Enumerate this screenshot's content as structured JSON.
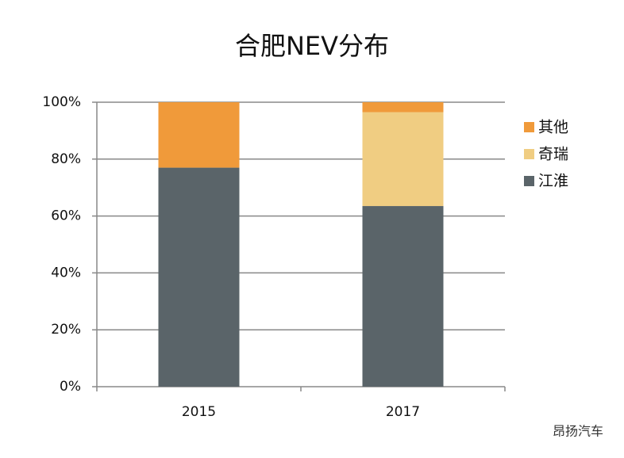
{
  "chart_data": {
    "type": "stacked_bar",
    "title": "合肥NEV分布",
    "categories": [
      "2015",
      "2017"
    ],
    "series": [
      {
        "name": "江淮",
        "color": "#5a6469",
        "values": [
          77,
          63.5
        ]
      },
      {
        "name": "奇瑞",
        "color": "#f0cd82",
        "values": [
          0,
          33
        ]
      },
      {
        "name": "其他",
        "color": "#f09a3a",
        "values": [
          23,
          3.5
        ]
      }
    ],
    "ylim": [
      0,
      100
    ],
    "yticks": [
      {
        "value": 0,
        "label": "0%"
      },
      {
        "value": 20,
        "label": "20%"
      },
      {
        "value": 40,
        "label": "40%"
      },
      {
        "value": 60,
        "label": "60%"
      },
      {
        "value": 80,
        "label": "80%"
      },
      {
        "value": 100,
        "label": "100%"
      }
    ],
    "grid": true,
    "legend": "right",
    "watermark": "昂扬汽车"
  }
}
